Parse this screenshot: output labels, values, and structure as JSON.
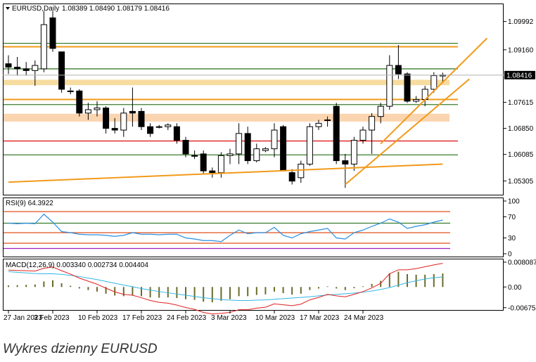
{
  "chart_data": {
    "type": "candlestick",
    "symbol_header": "EURUSD,Daily",
    "ohlc_header": "1.08389 1.08490 1.08179 1.08416",
    "current_price": "1.08416",
    "ylim": [
      1.049,
      1.105
    ],
    "y_ticks": [
      "1.09992",
      "1.09160",
      "1.07615",
      "1.06850",
      "1.06085",
      "1.05305"
    ],
    "x_labels": [
      "27 Jan 2023",
      "3 Feb 2023",
      "10 Feb 2023",
      "17 Feb 2023",
      "24 Feb 2023",
      "3 Mar 2023",
      "10 Mar 2023",
      "17 Mar 2023",
      "24 Mar 2023"
    ],
    "x_label_index": [
      0,
      5,
      10,
      15,
      20,
      25,
      30,
      35,
      40
    ],
    "candles": [
      {
        "o": 1.0875,
        "h": 1.09,
        "l": 1.0845,
        "c": 1.0865
      },
      {
        "o": 1.0865,
        "h": 1.0895,
        "l": 1.084,
        "c": 1.086
      },
      {
        "o": 1.086,
        "h": 1.088,
        "l": 1.084,
        "c": 1.0855
      },
      {
        "o": 1.0855,
        "h": 1.0885,
        "l": 1.081,
        "c": 1.087
      },
      {
        "o": 1.086,
        "h": 1.103,
        "l": 1.085,
        "c": 1.099
      },
      {
        "o": 1.101,
        "h": 1.103,
        "l": 1.091,
        "c": 1.092
      },
      {
        "o": 1.091,
        "h": 1.091,
        "l": 1.079,
        "c": 1.08
      },
      {
        "o": 1.0795,
        "h": 1.0805,
        "l": 1.0785,
        "c": 1.0795
      },
      {
        "o": 1.0795,
        "h": 1.08,
        "l": 1.072,
        "c": 1.073
      },
      {
        "o": 1.073,
        "h": 1.076,
        "l": 1.071,
        "c": 1.074
      },
      {
        "o": 1.074,
        "h": 1.0765,
        "l": 1.072,
        "c": 1.0745
      },
      {
        "o": 1.0745,
        "h": 1.075,
        "l": 1.067,
        "c": 1.0685
      },
      {
        "o": 1.0685,
        "h": 1.0715,
        "l": 1.067,
        "c": 1.068
      },
      {
        "o": 1.068,
        "h": 1.0745,
        "l": 1.066,
        "c": 1.073
      },
      {
        "o": 1.0735,
        "h": 1.0805,
        "l": 1.069,
        "c": 1.073
      },
      {
        "o": 1.0735,
        "h": 1.0745,
        "l": 1.068,
        "c": 1.069
      },
      {
        "o": 1.069,
        "h": 1.07,
        "l": 1.066,
        "c": 1.067
      },
      {
        "o": 1.069,
        "h": 1.0695,
        "l": 1.0685,
        "c": 1.069
      },
      {
        "o": 1.069,
        "h": 1.07,
        "l": 1.068,
        "c": 1.0695
      },
      {
        "o": 1.069,
        "h": 1.07,
        "l": 1.064,
        "c": 1.065
      },
      {
        "o": 1.065,
        "h": 1.066,
        "l": 1.06,
        "c": 1.061
      },
      {
        "o": 1.0605,
        "h": 1.062,
        "l": 1.0595,
        "c": 1.0605
      },
      {
        "o": 1.061,
        "h": 1.062,
        "l": 1.055,
        "c": 1.056
      },
      {
        "o": 1.056,
        "h": 1.057,
        "l": 1.054,
        "c": 1.0555
      },
      {
        "o": 1.0555,
        "h": 1.0615,
        "l": 1.054,
        "c": 1.0605
      },
      {
        "o": 1.0605,
        "h": 1.0625,
        "l": 1.058,
        "c": 1.061
      },
      {
        "o": 1.061,
        "h": 1.07,
        "l": 1.058,
        "c": 1.067
      },
      {
        "o": 1.067,
        "h": 1.069,
        "l": 1.058,
        "c": 1.059
      },
      {
        "o": 1.059,
        "h": 1.064,
        "l": 1.0585,
        "c": 1.0625
      },
      {
        "o": 1.062,
        "h": 1.063,
        "l": 1.0615,
        "c": 1.0625
      },
      {
        "o": 1.0625,
        "h": 1.07,
        "l": 1.06,
        "c": 1.068
      },
      {
        "o": 1.069,
        "h": 1.0695,
        "l": 1.056,
        "c": 1.056
      },
      {
        "o": 1.0555,
        "h": 1.0565,
        "l": 1.052,
        "c": 1.053
      },
      {
        "o": 1.054,
        "h": 1.059,
        "l": 1.0525,
        "c": 1.058
      },
      {
        "o": 1.058,
        "h": 1.07,
        "l": 1.0575,
        "c": 1.069
      },
      {
        "o": 1.069,
        "h": 1.071,
        "l": 1.068,
        "c": 1.07
      },
      {
        "o": 1.071,
        "h": 1.072,
        "l": 1.069,
        "c": 1.071
      },
      {
        "o": 1.075,
        "h": 1.076,
        "l": 1.058,
        "c": 1.059
      },
      {
        "o": 1.059,
        "h": 1.061,
        "l": 1.051,
        "c": 1.058
      },
      {
        "o": 1.058,
        "h": 1.066,
        "l": 1.056,
        "c": 1.065
      },
      {
        "o": 1.065,
        "h": 1.069,
        "l": 1.064,
        "c": 1.068
      },
      {
        "o": 1.068,
        "h": 1.073,
        "l": 1.061,
        "c": 1.072
      },
      {
        "o": 1.072,
        "h": 1.076,
        "l": 1.07,
        "c": 1.075
      },
      {
        "o": 1.075,
        "h": 1.09,
        "l": 1.074,
        "c": 1.087
      },
      {
        "o": 1.087,
        "h": 1.093,
        "l": 1.083,
        "c": 1.0845
      },
      {
        "o": 1.0845,
        "h": 1.085,
        "l": 1.076,
        "c": 1.0765
      },
      {
        "o": 1.0765,
        "h": 1.078,
        "l": 1.076,
        "c": 1.077
      },
      {
        "o": 1.077,
        "h": 1.081,
        "l": 1.075,
        "c": 1.08
      },
      {
        "o": 1.08,
        "h": 1.085,
        "l": 1.079,
        "c": 1.084
      },
      {
        "o": 1.0839,
        "h": 1.0849,
        "l": 1.0818,
        "c": 1.0842
      }
    ],
    "levels": [
      {
        "y": 1.0935,
        "color": "#3a7d2e"
      },
      {
        "y": 1.0925,
        "color": "#f29a1a"
      },
      {
        "y": 1.086,
        "color": "#3a7d2e"
      },
      {
        "y": 1.077,
        "color": "#f29a1a"
      },
      {
        "y": 1.0755,
        "color": "#3a7d2e"
      },
      {
        "y": 1.0648,
        "color": "#e02020"
      },
      {
        "y": 1.0607,
        "color": "#3a7d2e"
      }
    ],
    "zones": [
      {
        "y1": 1.0812,
        "y2": 1.0828,
        "color": "#f7dca0"
      },
      {
        "y1": 1.0705,
        "y2": 1.0728,
        "color": "#fbd5b0"
      }
    ],
    "trendlines": [
      {
        "i1": 0,
        "p1": 1.0527,
        "i2": 49,
        "p2": 1.058
      },
      {
        "i1": 38,
        "p1": 1.052,
        "i2": 52,
        "p2": 1.083
      },
      {
        "i1": 42,
        "p1": 1.064,
        "i2": 54,
        "p2": 1.095
      }
    ],
    "rsi": {
      "label": "RSI(9) 64.3922",
      "ylim": [
        0,
        100
      ],
      "ticks": [
        "100",
        "70",
        "30",
        "0"
      ],
      "values": [
        58,
        57,
        58,
        57,
        75,
        60,
        42,
        40,
        37,
        36,
        36,
        35,
        33,
        35,
        40,
        37,
        37,
        36,
        37,
        37,
        30,
        28,
        25,
        25,
        23,
        35,
        45,
        38,
        40,
        40,
        50,
        35,
        30,
        38,
        42,
        45,
        48,
        30,
        28,
        40,
        45,
        52,
        58,
        66,
        60,
        48,
        52,
        55,
        60,
        64
      ],
      "levels": [
        {
          "v": 80,
          "color": "#e0501a"
        },
        {
          "v": 58,
          "color": "#3a7d2e"
        },
        {
          "v": 40,
          "color": "#e0501a"
        },
        {
          "v": 20,
          "color": "#e0501a"
        },
        {
          "v": 10,
          "color": "#a020c0"
        }
      ]
    },
    "macd": {
      "label": "MACD(12,26,9) 0.003340 0.002734 0.004404",
      "ylim": [
        -0.0075,
        0.009
      ],
      "ticks": [
        "0.008087",
        "0.00",
        "-0.006757"
      ],
      "hist": [
        0.0005,
        0.0006,
        0.0007,
        0.0008,
        0.0018,
        0.0022,
        0.0012,
        0.0004,
        -0.0005,
        -0.001,
        -0.0015,
        -0.0022,
        -0.0028,
        -0.003,
        -0.0028,
        -0.003,
        -0.0034,
        -0.0035,
        -0.0034,
        -0.0036,
        -0.004,
        -0.0042,
        -0.0048,
        -0.005,
        -0.0045,
        -0.004,
        -0.003,
        -0.003,
        -0.0026,
        -0.0024,
        -0.0015,
        -0.002,
        -0.0025,
        -0.0022,
        -0.001,
        -0.0005,
        0.0002,
        -0.0005,
        -0.001,
        -0.0004,
        0.0002,
        0.001,
        0.002,
        0.0045,
        0.005,
        0.0042,
        0.004,
        0.004,
        0.0042,
        0.0044
      ],
      "signal": [
        0.005,
        0.0048,
        0.0046,
        0.0044,
        0.0043,
        0.0043,
        0.0041,
        0.0038,
        0.0034,
        0.0029,
        0.0024,
        0.0018,
        0.0012,
        0.0006,
        0.0001,
        -0.0005,
        -0.001,
        -0.0015,
        -0.0019,
        -0.0023,
        -0.0027,
        -0.0031,
        -0.0035,
        -0.0038,
        -0.0041,
        -0.0043,
        -0.0044,
        -0.0044,
        -0.0043,
        -0.0042,
        -0.004,
        -0.0038,
        -0.0036,
        -0.0034,
        -0.0032,
        -0.0029,
        -0.0026,
        -0.0024,
        -0.0022,
        -0.002,
        -0.0017,
        -0.0013,
        -0.0008,
        -0.0002,
        0.0006,
        0.0014,
        0.002,
        0.0026,
        0.003,
        0.0033
      ],
      "macd": [
        0.0055,
        0.0054,
        0.0053,
        0.0052,
        0.0061,
        0.0065,
        0.0053,
        0.0042,
        0.0029,
        0.0019,
        0.0009,
        -0.0004,
        -0.0016,
        -0.0024,
        -0.0027,
        -0.0035,
        -0.0044,
        -0.005,
        -0.0053,
        -0.0059,
        -0.0067,
        -0.0073,
        -0.0083,
        -0.0088,
        -0.0086,
        -0.0083,
        -0.0074,
        -0.0074,
        -0.0069,
        -0.0066,
        -0.0055,
        -0.0058,
        -0.0061,
        -0.0056,
        -0.0042,
        -0.0034,
        -0.0024,
        -0.0029,
        -0.0032,
        -0.0024,
        -0.0015,
        -0.0003,
        0.0012,
        0.0043,
        0.0056,
        0.0056,
        0.006,
        0.0066,
        0.0072,
        0.0077
      ]
    },
    "colors": {
      "bull": "#ffffff",
      "bear": "#000000",
      "rsi_line": "#2a8de0",
      "macd_line": "#e02020",
      "signal_line": "#33b5e5",
      "hist": "#6b6b2a",
      "trend": "#f29a1a"
    }
  },
  "caption": "Wykres dzienny EURUSD"
}
